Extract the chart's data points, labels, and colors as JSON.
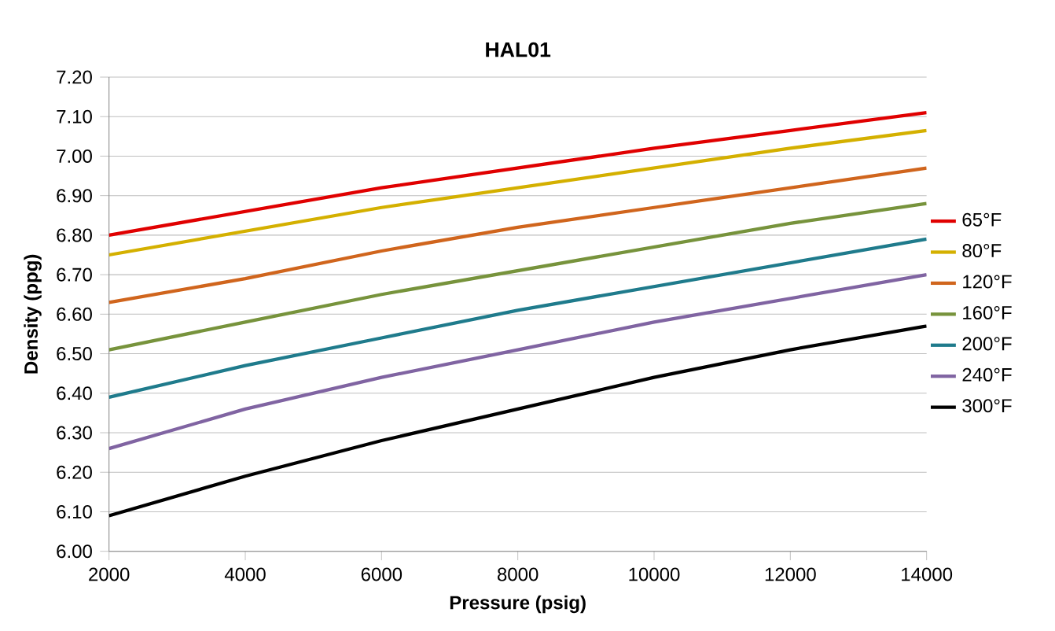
{
  "chart_data": {
    "type": "line",
    "title": "HAL01",
    "xlabel": "Pressure (psig)",
    "ylabel": "Density (ppg)",
    "x": [
      2000,
      4000,
      6000,
      8000,
      10000,
      12000,
      14000
    ],
    "series": [
      {
        "name": "65°F",
        "color": "#e00000",
        "values": [
          6.8,
          6.86,
          6.92,
          6.97,
          7.02,
          7.065,
          7.11
        ]
      },
      {
        "name": "80°F",
        "color": "#d4b000",
        "values": [
          6.75,
          6.81,
          6.87,
          6.92,
          6.97,
          7.02,
          7.065
        ]
      },
      {
        "name": "120°F",
        "color": "#d0651d",
        "values": [
          6.63,
          6.69,
          6.76,
          6.82,
          6.87,
          6.92,
          6.97
        ]
      },
      {
        "name": "160°F",
        "color": "#77933c",
        "values": [
          6.51,
          6.58,
          6.65,
          6.71,
          6.77,
          6.83,
          6.88
        ]
      },
      {
        "name": "200°F",
        "color": "#1f7b8c",
        "values": [
          6.39,
          6.47,
          6.54,
          6.61,
          6.67,
          6.73,
          6.79
        ]
      },
      {
        "name": "240°F",
        "color": "#8064a2",
        "values": [
          6.26,
          6.36,
          6.44,
          6.51,
          6.58,
          6.64,
          6.7
        ]
      },
      {
        "name": "300°F",
        "color": "#000000",
        "values": [
          6.09,
          6.19,
          6.28,
          6.36,
          6.44,
          6.51,
          6.57
        ]
      }
    ],
    "xlim": [
      2000,
      14000
    ],
    "xticks": [
      2000,
      4000,
      6000,
      8000,
      10000,
      12000,
      14000
    ],
    "ylim": [
      6.0,
      7.2
    ],
    "yticks": [
      {
        "value": 6.0,
        "label": "6.00"
      },
      {
        "value": 6.1,
        "label": "6.10"
      },
      {
        "value": 6.2,
        "label": "6.20"
      },
      {
        "value": 6.3,
        "label": "6.30"
      },
      {
        "value": 6.4,
        "label": "6.40"
      },
      {
        "value": 6.5,
        "label": "6.50"
      },
      {
        "value": 6.6,
        "label": "6.60"
      },
      {
        "value": 6.7,
        "label": "6.70"
      },
      {
        "value": 6.8,
        "label": "6.80"
      },
      {
        "value": 6.9,
        "label": "6.90"
      },
      {
        "value": 7.0,
        "label": "7.00"
      },
      {
        "value": 7.1,
        "label": "7.10"
      },
      {
        "value": 7.2,
        "label": "7.20"
      }
    ],
    "grid": "y",
    "legend": "right",
    "marker": "none",
    "line_style": "solid"
  }
}
